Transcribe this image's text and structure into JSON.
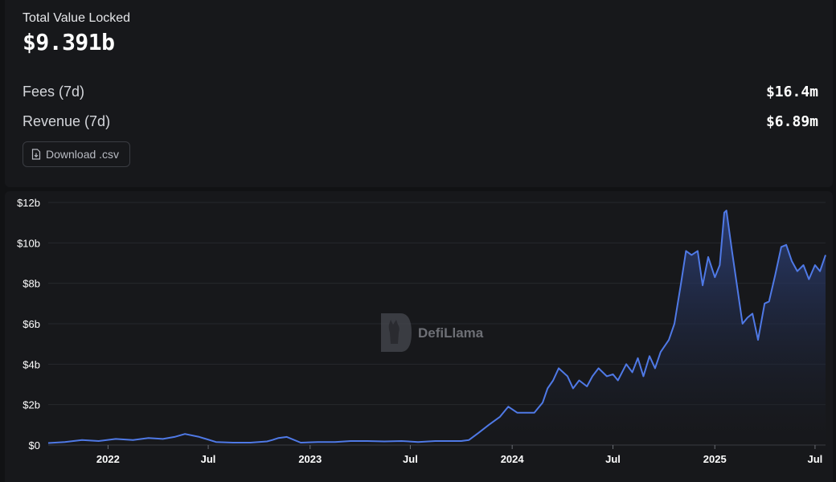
{
  "summary": {
    "tvl_label": "Total Value Locked",
    "tvl_value": "$9.391b",
    "fees_label": "Fees (7d)",
    "fees_value": "$16.4m",
    "revenue_label": "Revenue (7d)",
    "revenue_value": "$6.89m",
    "download_label": "Download .csv",
    "download_icon": "file-download-icon"
  },
  "watermark": {
    "text": "DefiLlama",
    "icon": "llama-logo-icon"
  },
  "colors": {
    "line": "#4f79e6",
    "area_top": "#2c3f77",
    "background": "#17181b"
  },
  "chart_data": {
    "type": "area",
    "title": "",
    "xlabel": "",
    "ylabel": "",
    "x_range": [
      "2021-09-15",
      "2025-07-20"
    ],
    "ylim": [
      0,
      12
    ],
    "y_unit": "billions USD",
    "y_ticks": [
      0,
      2,
      4,
      6,
      8,
      10,
      12
    ],
    "y_tick_labels": [
      "$0",
      "$2b",
      "$4b",
      "$6b",
      "$8b",
      "$10b",
      "$12b"
    ],
    "x_ticks": [
      {
        "date": "2022-01-01",
        "label": "2022",
        "bold": true
      },
      {
        "date": "2022-07-01",
        "label": "Jul",
        "bold": false
      },
      {
        "date": "2023-01-01",
        "label": "2023",
        "bold": true
      },
      {
        "date": "2023-07-01",
        "label": "Jul",
        "bold": false
      },
      {
        "date": "2024-01-01",
        "label": "2024",
        "bold": true
      },
      {
        "date": "2024-07-01",
        "label": "Jul",
        "bold": false
      },
      {
        "date": "2025-01-01",
        "label": "2025",
        "bold": true
      },
      {
        "date": "2025-07-01",
        "label": "Jul",
        "bold": false
      }
    ],
    "grid": "horizontal",
    "series": [
      {
        "x": [
          "2021-09-15",
          "2021-10-15",
          "2021-11-15",
          "2021-12-15",
          "2022-01-15",
          "2022-02-15",
          "2022-03-15",
          "2022-04-10",
          "2022-05-01",
          "2022-05-20",
          "2022-06-15",
          "2022-07-15",
          "2022-08-15",
          "2022-09-15",
          "2022-10-15",
          "2022-10-25",
          "2022-11-05",
          "2022-11-20",
          "2022-12-15",
          "2023-01-15",
          "2023-02-15",
          "2023-03-15",
          "2023-04-15",
          "2023-05-15",
          "2023-06-15",
          "2023-07-15",
          "2023-08-15",
          "2023-09-15",
          "2023-10-01",
          "2023-10-15",
          "2023-11-01",
          "2023-11-20",
          "2023-12-10",
          "2023-12-25",
          "2024-01-10",
          "2024-01-25",
          "2024-02-10",
          "2024-02-25",
          "2024-03-05",
          "2024-03-15",
          "2024-03-25",
          "2024-04-10",
          "2024-04-20",
          "2024-05-01",
          "2024-05-15",
          "2024-05-25",
          "2024-06-05",
          "2024-06-20",
          "2024-07-01",
          "2024-07-10",
          "2024-07-25",
          "2024-08-05",
          "2024-08-15",
          "2024-08-25",
          "2024-09-05",
          "2024-09-15",
          "2024-09-25",
          "2024-10-10",
          "2024-10-20",
          "2024-11-01",
          "2024-11-10",
          "2024-11-20",
          "2024-12-01",
          "2024-12-10",
          "2024-12-20",
          "2025-01-01",
          "2025-01-10",
          "2025-01-18",
          "2025-01-22",
          "2025-02-01",
          "2025-02-10",
          "2025-02-20",
          "2025-03-01",
          "2025-03-10",
          "2025-03-20",
          "2025-04-01",
          "2025-04-09",
          "2025-04-20",
          "2025-05-01",
          "2025-05-10",
          "2025-05-20",
          "2025-05-30",
          "2025-06-10",
          "2025-06-20",
          "2025-07-01",
          "2025-07-10",
          "2025-07-20"
        ],
        "y": [
          0.1,
          0.15,
          0.25,
          0.2,
          0.3,
          0.25,
          0.35,
          0.3,
          0.4,
          0.55,
          0.4,
          0.15,
          0.12,
          0.12,
          0.18,
          0.25,
          0.35,
          0.4,
          0.12,
          0.15,
          0.15,
          0.2,
          0.2,
          0.18,
          0.2,
          0.15,
          0.2,
          0.2,
          0.2,
          0.25,
          0.6,
          1.0,
          1.4,
          1.9,
          1.6,
          1.6,
          1.6,
          2.1,
          2.8,
          3.2,
          3.8,
          3.4,
          2.8,
          3.2,
          2.9,
          3.4,
          3.8,
          3.4,
          3.5,
          3.2,
          4.0,
          3.6,
          4.3,
          3.4,
          4.4,
          3.8,
          4.6,
          5.2,
          6.0,
          8.0,
          9.6,
          9.4,
          9.6,
          7.9,
          9.3,
          8.3,
          8.9,
          11.5,
          11.6,
          9.6,
          7.9,
          6.0,
          6.3,
          6.5,
          5.2,
          7.0,
          7.1,
          8.4,
          9.8,
          9.9,
          9.1,
          8.6,
          8.9,
          8.2,
          8.9,
          8.6,
          9.4
        ]
      }
    ]
  }
}
